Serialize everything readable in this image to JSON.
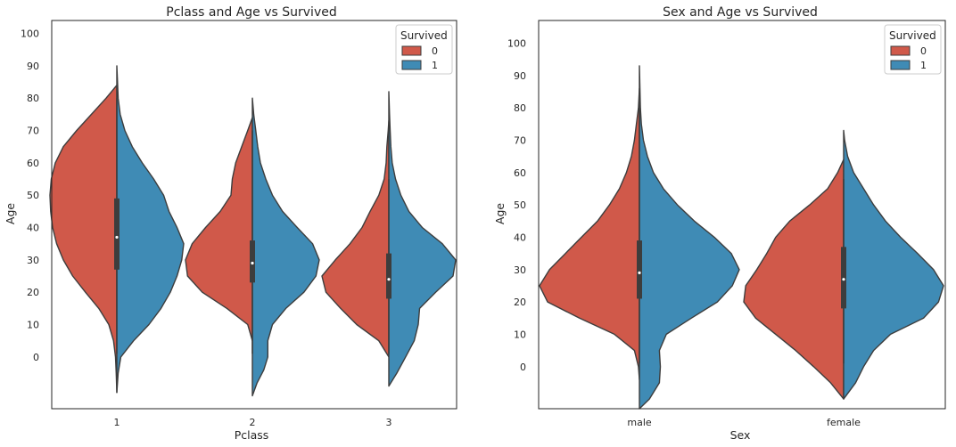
{
  "colors": {
    "survived_0": "#d0594a",
    "survived_1": "#3f8bb5",
    "edge": "#3d3d3d",
    "frame": "#262626"
  },
  "chart_data": [
    {
      "type": "violin",
      "split": true,
      "title": "Pclass and Age vs Survived",
      "xlabel": "Pclass",
      "ylabel": "Age",
      "categories": [
        "1",
        "2",
        "3"
      ],
      "yticks": [
        0,
        10,
        20,
        30,
        40,
        50,
        60,
        70,
        80,
        90,
        100
      ],
      "ylim": [
        -16,
        104
      ],
      "legend": {
        "title": "Survived",
        "entries": [
          "0",
          "1"
        ],
        "placement": "top-right"
      },
      "series": [
        {
          "category": "1",
          "half": "0",
          "extent": [
            -11,
            84
          ],
          "profile": [
            [
              -11,
              0.0
            ],
            [
              -5,
              0.01
            ],
            [
              0,
              0.02
            ],
            [
              5,
              0.05
            ],
            [
              10,
              0.12
            ],
            [
              15,
              0.27
            ],
            [
              20,
              0.47
            ],
            [
              25,
              0.66
            ],
            [
              30,
              0.8
            ],
            [
              35,
              0.9
            ],
            [
              40,
              0.96
            ],
            [
              45,
              0.99
            ],
            [
              50,
              1.0
            ],
            [
              55,
              0.98
            ],
            [
              60,
              0.92
            ],
            [
              65,
              0.8
            ],
            [
              70,
              0.6
            ],
            [
              75,
              0.38
            ],
            [
              80,
              0.16
            ],
            [
              84,
              0.0
            ]
          ]
        },
        {
          "category": "1",
          "half": "1",
          "extent": [
            -11,
            90
          ],
          "profile": [
            [
              -11,
              0.0
            ],
            [
              -5,
              0.02
            ],
            [
              0,
              0.06
            ],
            [
              5,
              0.25
            ],
            [
              10,
              0.48
            ],
            [
              15,
              0.66
            ],
            [
              20,
              0.8
            ],
            [
              25,
              0.9
            ],
            [
              30,
              0.97
            ],
            [
              35,
              1.0
            ],
            [
              40,
              0.9
            ],
            [
              45,
              0.78
            ],
            [
              50,
              0.7
            ],
            [
              55,
              0.55
            ],
            [
              60,
              0.38
            ],
            [
              65,
              0.23
            ],
            [
              70,
              0.12
            ],
            [
              75,
              0.05
            ],
            [
              80,
              0.02
            ],
            [
              85,
              0.01
            ],
            [
              90,
              0.0
            ]
          ]
        },
        {
          "category": "2",
          "half": "0",
          "extent": [
            5,
            74
          ],
          "profile": [
            [
              5,
              0.0
            ],
            [
              10,
              0.07
            ],
            [
              15,
              0.38
            ],
            [
              20,
              0.75
            ],
            [
              25,
              0.97
            ],
            [
              30,
              1.0
            ],
            [
              35,
              0.9
            ],
            [
              40,
              0.7
            ],
            [
              45,
              0.48
            ],
            [
              50,
              0.32
            ],
            [
              55,
              0.3
            ],
            [
              60,
              0.25
            ],
            [
              65,
              0.16
            ],
            [
              70,
              0.07
            ],
            [
              74,
              0.0
            ]
          ]
        },
        {
          "category": "2",
          "half": "1",
          "extent": [
            -12,
            80
          ],
          "profile": [
            [
              -12,
              0.0
            ],
            [
              -8,
              0.07
            ],
            [
              -4,
              0.17
            ],
            [
              0,
              0.23
            ],
            [
              5,
              0.23
            ],
            [
              10,
              0.3
            ],
            [
              15,
              0.5
            ],
            [
              20,
              0.77
            ],
            [
              25,
              0.95
            ],
            [
              30,
              1.0
            ],
            [
              35,
              0.9
            ],
            [
              40,
              0.67
            ],
            [
              45,
              0.45
            ],
            [
              50,
              0.3
            ],
            [
              55,
              0.2
            ],
            [
              60,
              0.12
            ],
            [
              65,
              0.08
            ],
            [
              70,
              0.05
            ],
            [
              75,
              0.02
            ],
            [
              80,
              0.0
            ]
          ]
        },
        {
          "category": "3",
          "half": "0",
          "extent": [
            0,
            73
          ],
          "profile": [
            [
              0,
              0.0
            ],
            [
              5,
              0.15
            ],
            [
              10,
              0.48
            ],
            [
              15,
              0.72
            ],
            [
              20,
              0.94
            ],
            [
              25,
              1.0
            ],
            [
              30,
              0.8
            ],
            [
              35,
              0.58
            ],
            [
              40,
              0.4
            ],
            [
              45,
              0.28
            ],
            [
              50,
              0.15
            ],
            [
              55,
              0.07
            ],
            [
              60,
              0.04
            ],
            [
              65,
              0.03
            ],
            [
              70,
              0.01
            ],
            [
              73,
              0.0
            ]
          ]
        },
        {
          "category": "3",
          "half": "1",
          "extent": [
            -9,
            82
          ],
          "profile": [
            [
              -9,
              0.0
            ],
            [
              -5,
              0.12
            ],
            [
              0,
              0.25
            ],
            [
              5,
              0.38
            ],
            [
              10,
              0.44
            ],
            [
              15,
              0.46
            ],
            [
              20,
              0.7
            ],
            [
              25,
              0.96
            ],
            [
              30,
              1.0
            ],
            [
              35,
              0.8
            ],
            [
              40,
              0.5
            ],
            [
              45,
              0.3
            ],
            [
              50,
              0.18
            ],
            [
              55,
              0.1
            ],
            [
              60,
              0.05
            ],
            [
              65,
              0.03
            ],
            [
              70,
              0.02
            ],
            [
              75,
              0.01
            ],
            [
              82,
              0.0
            ]
          ]
        }
      ],
      "boxes": [
        {
          "category": "1",
          "q1": 27,
          "median": 37,
          "q3": 49,
          "whisker_low": 1,
          "whisker_high": 80
        },
        {
          "category": "2",
          "q1": 23,
          "median": 29,
          "q3": 36,
          "whisker_low": 1,
          "whisker_high": 70
        },
        {
          "category": "3",
          "q1": 18,
          "median": 24,
          "q3": 32,
          "whisker_low": 1,
          "whisker_high": 55
        }
      ]
    },
    {
      "type": "violin",
      "split": true,
      "title": "Sex and Age vs Survived",
      "xlabel": "Sex",
      "ylabel": "Age",
      "categories": [
        "male",
        "female"
      ],
      "yticks": [
        0,
        10,
        20,
        30,
        40,
        50,
        60,
        70,
        80,
        90,
        100
      ],
      "ylim": [
        -13,
        107
      ],
      "legend": {
        "title": "Survived",
        "entries": [
          "0",
          "1"
        ],
        "placement": "top-right"
      },
      "series": [
        {
          "category": "male",
          "half": "0",
          "extent": [
            -4,
            86
          ],
          "profile": [
            [
              -4,
              0.0
            ],
            [
              0,
              0.01
            ],
            [
              5,
              0.05
            ],
            [
              10,
              0.25
            ],
            [
              15,
              0.6
            ],
            [
              20,
              0.92
            ],
            [
              25,
              1.0
            ],
            [
              30,
              0.9
            ],
            [
              35,
              0.74
            ],
            [
              40,
              0.58
            ],
            [
              45,
              0.42
            ],
            [
              50,
              0.3
            ],
            [
              55,
              0.2
            ],
            [
              60,
              0.13
            ],
            [
              65,
              0.08
            ],
            [
              70,
              0.05
            ],
            [
              75,
              0.03
            ],
            [
              80,
              0.01
            ],
            [
              86,
              0.0
            ]
          ]
        },
        {
          "category": "male",
          "half": "1",
          "extent": [
            -13,
            93
          ],
          "profile": [
            [
              -13,
              0.0
            ],
            [
              -10,
              0.1
            ],
            [
              -5,
              0.2
            ],
            [
              0,
              0.21
            ],
            [
              5,
              0.2
            ],
            [
              10,
              0.27
            ],
            [
              15,
              0.52
            ],
            [
              20,
              0.78
            ],
            [
              25,
              0.93
            ],
            [
              30,
              1.0
            ],
            [
              35,
              0.92
            ],
            [
              40,
              0.75
            ],
            [
              45,
              0.55
            ],
            [
              50,
              0.38
            ],
            [
              55,
              0.24
            ],
            [
              60,
              0.14
            ],
            [
              65,
              0.08
            ],
            [
              70,
              0.04
            ],
            [
              75,
              0.02
            ],
            [
              80,
              0.01
            ],
            [
              93,
              0.0
            ]
          ]
        },
        {
          "category": "female",
          "half": "0",
          "extent": [
            -10,
            64
          ],
          "profile": [
            [
              -10,
              0.0
            ],
            [
              -5,
              0.13
            ],
            [
              0,
              0.3
            ],
            [
              5,
              0.48
            ],
            [
              10,
              0.68
            ],
            [
              15,
              0.88
            ],
            [
              20,
              1.0
            ],
            [
              25,
              0.98
            ],
            [
              30,
              0.87
            ],
            [
              35,
              0.77
            ],
            [
              40,
              0.68
            ],
            [
              45,
              0.54
            ],
            [
              50,
              0.34
            ],
            [
              55,
              0.16
            ],
            [
              60,
              0.06
            ],
            [
              64,
              0.0
            ]
          ]
        },
        {
          "category": "female",
          "half": "1",
          "extent": [
            -10,
            73
          ],
          "profile": [
            [
              -10,
              0.0
            ],
            [
              -5,
              0.12
            ],
            [
              0,
              0.2
            ],
            [
              5,
              0.3
            ],
            [
              10,
              0.47
            ],
            [
              15,
              0.8
            ],
            [
              20,
              0.95
            ],
            [
              25,
              1.0
            ],
            [
              30,
              0.9
            ],
            [
              35,
              0.74
            ],
            [
              40,
              0.57
            ],
            [
              45,
              0.42
            ],
            [
              50,
              0.3
            ],
            [
              55,
              0.2
            ],
            [
              60,
              0.1
            ],
            [
              65,
              0.04
            ],
            [
              70,
              0.01
            ],
            [
              73,
              0.0
            ]
          ]
        }
      ],
      "boxes": [
        {
          "category": "male",
          "q1": 21,
          "median": 29,
          "q3": 39,
          "whisker_low": 1,
          "whisker_high": 81
        },
        {
          "category": "female",
          "q1": 18,
          "median": 27,
          "q3": 37,
          "whisker_low": 1,
          "whisker_high": 58
        }
      ]
    }
  ]
}
